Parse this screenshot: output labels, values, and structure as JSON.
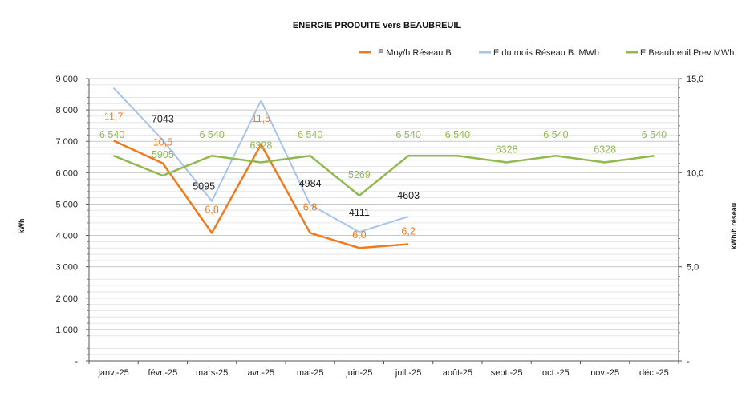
{
  "chart_data": {
    "type": "line",
    "title": "ENERGIE PRODUITE vers BEAUBREUIL",
    "categories": [
      "janv.-25",
      "févr.-25",
      "mars-25",
      "avr.-25",
      "mai-25",
      "juin-25",
      "juil.-25",
      "août-25",
      "sept.-25",
      "oct.-25",
      "nov.-25",
      "déc.-25"
    ],
    "ylabel_left": "kWh",
    "ylabel_right": "kWh/h réseau",
    "left_axis": {
      "range": [
        0,
        9000
      ],
      "ticks": [
        0,
        1000,
        2000,
        3000,
        4000,
        5000,
        6000,
        7000,
        8000,
        9000
      ],
      "tick_labels": [
        "-",
        "1 000",
        "2 000",
        "3 000",
        "4 000",
        "5 000",
        "6 000",
        "7 000",
        "8 000",
        "9 000"
      ]
    },
    "right_axis": {
      "range": [
        0,
        15
      ],
      "ticks": [
        0,
        5,
        10,
        15
      ],
      "tick_labels": [
        "-",
        "5,0",
        "10,0",
        "15,0"
      ]
    },
    "grid": true,
    "legend_position": "top-right",
    "series": [
      {
        "name": "E Moy/h Réseau B",
        "axis": "right",
        "color": "#f07a1e",
        "values": [
          11.7,
          10.5,
          6.8,
          11.5,
          6.8,
          6.0,
          6.2,
          null,
          null,
          null,
          null,
          null
        ],
        "labels": [
          "11,7",
          "10,5",
          "6,8",
          "11,5",
          "6,8",
          "6,0",
          "6,2",
          null,
          null,
          null,
          null,
          null
        ]
      },
      {
        "name": "E du mois  Réseau B. MWh",
        "axis": "left",
        "color": "#a9c4ec",
        "values": [
          8700,
          7043,
          5095,
          8300,
          4984,
          4111,
          4603,
          null,
          null,
          null,
          null,
          null
        ],
        "labels": [
          null,
          "7043",
          "5095",
          null,
          "4984",
          "4111",
          "4603",
          null,
          null,
          null,
          null,
          null
        ]
      },
      {
        "name": "E Beaubreuil Prev MWh",
        "axis": "left",
        "color": "#92b94f",
        "values": [
          6540,
          5905,
          6540,
          6328,
          6540,
          5269,
          6540,
          6540,
          6328,
          6540,
          6328,
          6540
        ],
        "labels": [
          "6 540",
          "5905",
          "6 540",
          "6328",
          "6 540",
          "5269",
          "6 540",
          "6 540",
          "6328",
          "6 540",
          "6328",
          "6 540"
        ]
      }
    ]
  }
}
